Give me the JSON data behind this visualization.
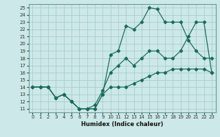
{
  "xlabel": "Humidex (Indice chaleur)",
  "bg_color": "#cce8e8",
  "grid_color": "#aacccc",
  "line_color": "#1a6b5a",
  "xlim": [
    -0.5,
    23.5
  ],
  "ylim": [
    10.5,
    25.5
  ],
  "xticks": [
    0,
    1,
    2,
    3,
    4,
    5,
    6,
    7,
    8,
    9,
    10,
    11,
    12,
    13,
    14,
    15,
    16,
    17,
    18,
    19,
    20,
    21,
    22,
    23
  ],
  "yticks": [
    11,
    12,
    13,
    14,
    15,
    16,
    17,
    18,
    19,
    20,
    21,
    22,
    23,
    24,
    25
  ],
  "line_upper_x": [
    0,
    1,
    2,
    3,
    4,
    5,
    6,
    7,
    8,
    9,
    10,
    11,
    12,
    13,
    14,
    15,
    16,
    17,
    18,
    19,
    20,
    21,
    22,
    23
  ],
  "line_upper_y": [
    14,
    14,
    14,
    12.5,
    13,
    12,
    11,
    11,
    11,
    13,
    18.5,
    19,
    22.5,
    22,
    23,
    25,
    24.8,
    23,
    23,
    23,
    20.5,
    19,
    18,
    18
  ],
  "line_mid_x": [
    0,
    1,
    2,
    3,
    4,
    5,
    6,
    7,
    8,
    9,
    10,
    11,
    12,
    13,
    14,
    15,
    16,
    17,
    18,
    19,
    20,
    21,
    22,
    23
  ],
  "line_mid_y": [
    14,
    14,
    14,
    12.5,
    13,
    12,
    11,
    11,
    11.5,
    13.5,
    16,
    17,
    18,
    17,
    18,
    19,
    19,
    18,
    18,
    19,
    21,
    23,
    23,
    16
  ],
  "line_lower_x": [
    0,
    1,
    2,
    3,
    4,
    5,
    6,
    7,
    8,
    9,
    10,
    11,
    12,
    13,
    14,
    15,
    16,
    17,
    18,
    19,
    20,
    21,
    22,
    23
  ],
  "line_lower_y": [
    14,
    14,
    14,
    12.5,
    13,
    12,
    11,
    11,
    11,
    13,
    14,
    14,
    14,
    14.5,
    15,
    15.5,
    16,
    16,
    16.5,
    16.5,
    16.5,
    16.5,
    16.5,
    16
  ]
}
